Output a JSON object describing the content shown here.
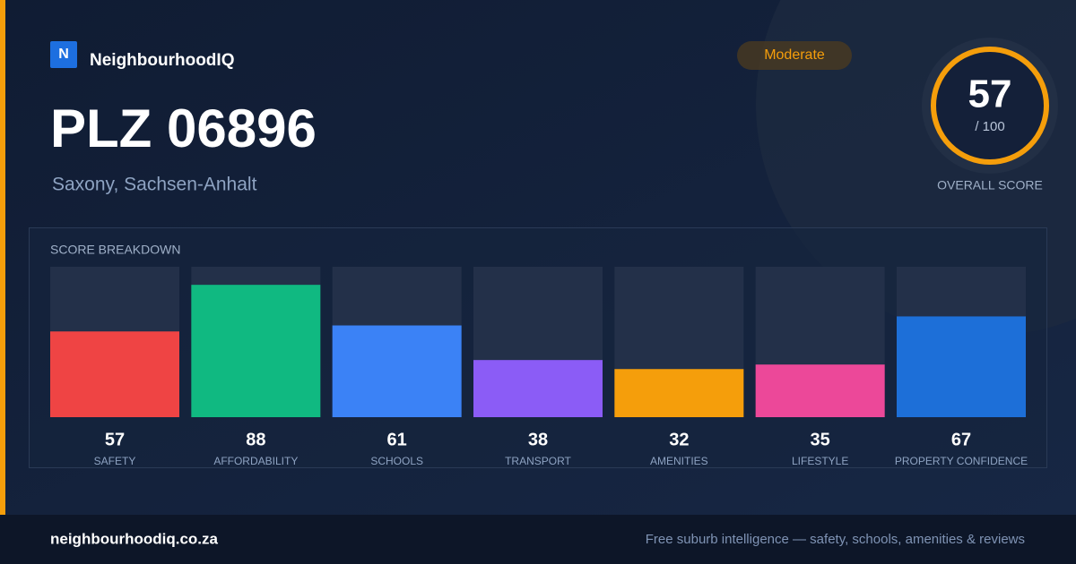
{
  "brand": {
    "logo": "N",
    "name": "NeighbourhoodIQ"
  },
  "badge": "Moderate",
  "title": "PLZ 06896",
  "subtitle": "Saxony, Sachsen-Anhalt",
  "score": {
    "value": 57,
    "max_label": "/ 100",
    "label": "OVERALL SCORE"
  },
  "chart_data": {
    "type": "bar",
    "title": "SCORE BREAKDOWN",
    "categories": [
      "SAFETY",
      "AFFORDABILITY",
      "SCHOOLS",
      "TRANSPORT",
      "AMENITIES",
      "LIFESTYLE",
      "PROPERTY CONFIDENCE"
    ],
    "values": [
      57,
      88,
      61,
      38,
      32,
      35,
      67
    ],
    "colors": [
      "#ef4444",
      "#10b981",
      "#3b82f6",
      "#8b5cf6",
      "#f59e0b",
      "#ec4899",
      "#1d6fd8"
    ],
    "ylim": [
      0,
      100
    ]
  },
  "footer": {
    "url": "neighbourhoodiq.co.za",
    "tagline": "Free suburb intelligence — safety, schools, amenities & reviews"
  }
}
